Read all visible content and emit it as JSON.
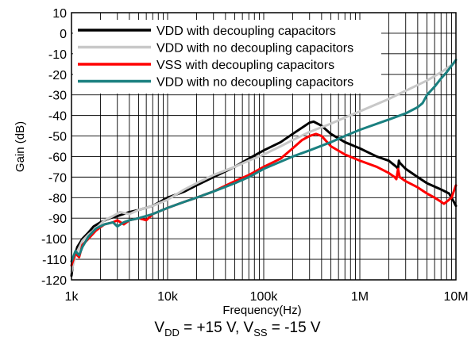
{
  "chart_data": {
    "type": "line",
    "xlabel": "Frequency(Hz)",
    "ylabel": "Gain (dB)",
    "x_scale": "log",
    "xlim": [
      1000,
      10000000
    ],
    "ylim": [
      -120,
      10
    ],
    "x_ticks": [
      1000,
      10000,
      100000,
      1000000,
      10000000
    ],
    "x_tick_labels": [
      "1k",
      "10k",
      "100k",
      "1M",
      "10M"
    ],
    "y_ticks": [
      10,
      0,
      -10,
      -20,
      -30,
      -40,
      -50,
      -60,
      -70,
      -80,
      -90,
      -100,
      -110,
      -120
    ],
    "grid": true,
    "legend_position": "top-left",
    "series": [
      {
        "name": "VDD with decoupling capacitors",
        "color": "#000000",
        "points": [
          [
            1000,
            -118
          ],
          [
            1050,
            -110
          ],
          [
            1150,
            -104
          ],
          [
            1300,
            -100
          ],
          [
            1500,
            -97
          ],
          [
            1700,
            -94
          ],
          [
            2000,
            -92
          ],
          [
            2500,
            -90
          ],
          [
            3000,
            -89
          ],
          [
            4000,
            -87
          ],
          [
            5000,
            -86
          ],
          [
            7000,
            -84
          ],
          [
            10000,
            -80
          ],
          [
            15000,
            -77
          ],
          [
            20000,
            -74
          ],
          [
            30000,
            -70
          ],
          [
            50000,
            -65
          ],
          [
            70000,
            -61
          ],
          [
            100000,
            -57
          ],
          [
            150000,
            -53
          ],
          [
            200000,
            -49
          ],
          [
            250000,
            -46
          ],
          [
            300000,
            -43.5
          ],
          [
            330000,
            -43
          ],
          [
            400000,
            -45
          ],
          [
            500000,
            -49
          ],
          [
            700000,
            -53
          ],
          [
            1000000,
            -56
          ],
          [
            1500000,
            -60
          ],
          [
            2000000,
            -62
          ],
          [
            2400000,
            -65
          ],
          [
            2500000,
            -66
          ],
          [
            2550000,
            -62
          ],
          [
            2600000,
            -63
          ],
          [
            3000000,
            -66
          ],
          [
            4000000,
            -70
          ],
          [
            5000000,
            -73
          ],
          [
            7000000,
            -76
          ],
          [
            8500000,
            -78
          ],
          [
            9500000,
            -82
          ],
          [
            10000000,
            -84
          ]
        ]
      },
      {
        "name": "VDD with no decoupling capacitors",
        "color": "#c8c8c8",
        "points": [
          [
            1000,
            -116
          ],
          [
            1100,
            -108
          ],
          [
            1300,
            -101
          ],
          [
            1500,
            -98
          ],
          [
            1800,
            -95
          ],
          [
            2200,
            -91
          ],
          [
            2700,
            -89
          ],
          [
            3200,
            -87
          ],
          [
            4000,
            -88
          ],
          [
            5000,
            -86
          ],
          [
            7000,
            -84
          ],
          [
            10000,
            -81
          ],
          [
            15000,
            -76
          ],
          [
            20000,
            -73
          ],
          [
            30000,
            -69
          ],
          [
            50000,
            -65
          ],
          [
            70000,
            -62
          ],
          [
            100000,
            -59
          ],
          [
            150000,
            -55
          ],
          [
            200000,
            -52
          ],
          [
            300000,
            -48
          ],
          [
            500000,
            -44
          ],
          [
            700000,
            -41
          ],
          [
            1000000,
            -38
          ],
          [
            2000000,
            -32
          ],
          [
            3000000,
            -28
          ],
          [
            5000000,
            -23
          ],
          [
            7000000,
            -19
          ],
          [
            10000000,
            -14
          ]
        ]
      },
      {
        "name": "VSS with decoupling capacitors",
        "color": "#ff0000",
        "points": [
          [
            1000,
            -113
          ],
          [
            1100,
            -107
          ],
          [
            1200,
            -109
          ],
          [
            1300,
            -103
          ],
          [
            1500,
            -100
          ],
          [
            1800,
            -96
          ],
          [
            2200,
            -93
          ],
          [
            2700,
            -92
          ],
          [
            3000,
            -91
          ],
          [
            3500,
            -93
          ],
          [
            4000,
            -91
          ],
          [
            5000,
            -90
          ],
          [
            6000,
            -91
          ],
          [
            7000,
            -88
          ],
          [
            10000,
            -85
          ],
          [
            15000,
            -82
          ],
          [
            20000,
            -80
          ],
          [
            30000,
            -77
          ],
          [
            50000,
            -72
          ],
          [
            70000,
            -69
          ],
          [
            100000,
            -65
          ],
          [
            150000,
            -61
          ],
          [
            200000,
            -56
          ],
          [
            250000,
            -52
          ],
          [
            300000,
            -50
          ],
          [
            350000,
            -49
          ],
          [
            400000,
            -50
          ],
          [
            500000,
            -55
          ],
          [
            700000,
            -59
          ],
          [
            1000000,
            -62
          ],
          [
            1500000,
            -65
          ],
          [
            2000000,
            -68
          ],
          [
            2300000,
            -70
          ],
          [
            2400000,
            -71
          ],
          [
            2500000,
            -66
          ],
          [
            2600000,
            -70
          ],
          [
            3000000,
            -72
          ],
          [
            4000000,
            -75
          ],
          [
            5000000,
            -78
          ],
          [
            6000000,
            -80
          ],
          [
            7000000,
            -82
          ],
          [
            7500000,
            -83
          ],
          [
            8000000,
            -82
          ],
          [
            9000000,
            -80
          ],
          [
            10000000,
            -74
          ]
        ]
      },
      {
        "name": "VDD with no decoupling capacitors",
        "color": "#1a8080",
        "points": [
          [
            1000,
            -111
          ],
          [
            1100,
            -106
          ],
          [
            1200,
            -108
          ],
          [
            1300,
            -104
          ],
          [
            1500,
            -99
          ],
          [
            1800,
            -95
          ],
          [
            2200,
            -93
          ],
          [
            2700,
            -92
          ],
          [
            3000,
            -94
          ],
          [
            3500,
            -92
          ],
          [
            4000,
            -91
          ],
          [
            5000,
            -90
          ],
          [
            7000,
            -88
          ],
          [
            10000,
            -85
          ],
          [
            15000,
            -82
          ],
          [
            20000,
            -80
          ],
          [
            30000,
            -77
          ],
          [
            50000,
            -73
          ],
          [
            70000,
            -70
          ],
          [
            100000,
            -66
          ],
          [
            200000,
            -60
          ],
          [
            300000,
            -57
          ],
          [
            500000,
            -53
          ],
          [
            700000,
            -50
          ],
          [
            1000000,
            -47
          ],
          [
            2000000,
            -42
          ],
          [
            3000000,
            -39
          ],
          [
            4000000,
            -36
          ],
          [
            4500000,
            -34
          ],
          [
            5000000,
            -30
          ],
          [
            6000000,
            -26
          ],
          [
            7000000,
            -22
          ],
          [
            8000000,
            -19
          ],
          [
            10000000,
            -13
          ]
        ]
      }
    ]
  },
  "caption": {
    "v1": "V",
    "v1_sub": "DD",
    "middle": " = +15 V, V",
    "v2_sub": "SS",
    "tail": " = -15 V"
  }
}
